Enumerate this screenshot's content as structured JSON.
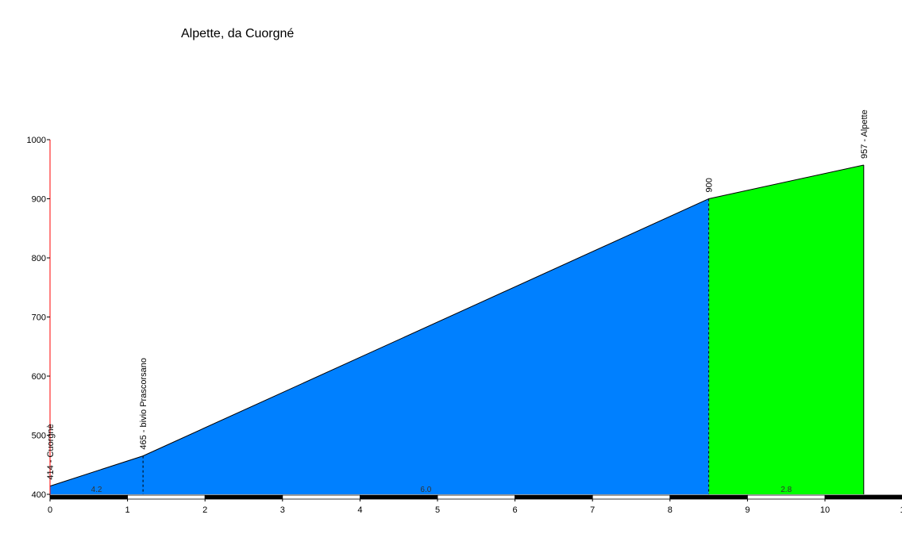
{
  "chart_data": {
    "type": "area",
    "title": "Alpette, da Cuorgné",
    "xlabel": "",
    "ylabel": "",
    "xlim": [
      0,
      11
    ],
    "ylim": [
      400,
      1000
    ],
    "x_ticks": [
      "0",
      "1",
      "2",
      "3",
      "4",
      "5",
      "6",
      "7",
      "8",
      "9",
      "10",
      "1"
    ],
    "y_ticks": [
      "400",
      "500",
      "600",
      "700",
      "800",
      "900",
      "1000"
    ],
    "profile": [
      {
        "x": 0,
        "y": 414
      },
      {
        "x": 1.2,
        "y": 465
      },
      {
        "x": 8.5,
        "y": 900
      },
      {
        "x": 10.5,
        "y": 957
      }
    ],
    "segments": [
      {
        "x0": 0,
        "x1": 8.5,
        "color": "#0080ff"
      },
      {
        "x0": 8.5,
        "x1": 10.5,
        "color": "#00ff00"
      }
    ],
    "annotations": [
      {
        "x": 0,
        "y": 414,
        "label": "414 - Cuorgnè",
        "dashed": false
      },
      {
        "x": 1.2,
        "y": 465,
        "label": "465 - bivio Prascorsano",
        "dashed": true
      },
      {
        "x": 8.5,
        "y": 900,
        "label": "900",
        "dashed": true
      },
      {
        "x": 10.5,
        "y": 957,
        "label": "957 - Alpette",
        "dashed": false
      }
    ],
    "gradients": [
      {
        "x": 0.6,
        "label": "4.2"
      },
      {
        "x": 4.85,
        "label": "6.0"
      },
      {
        "x": 9.5,
        "label": "2.8"
      }
    ]
  }
}
